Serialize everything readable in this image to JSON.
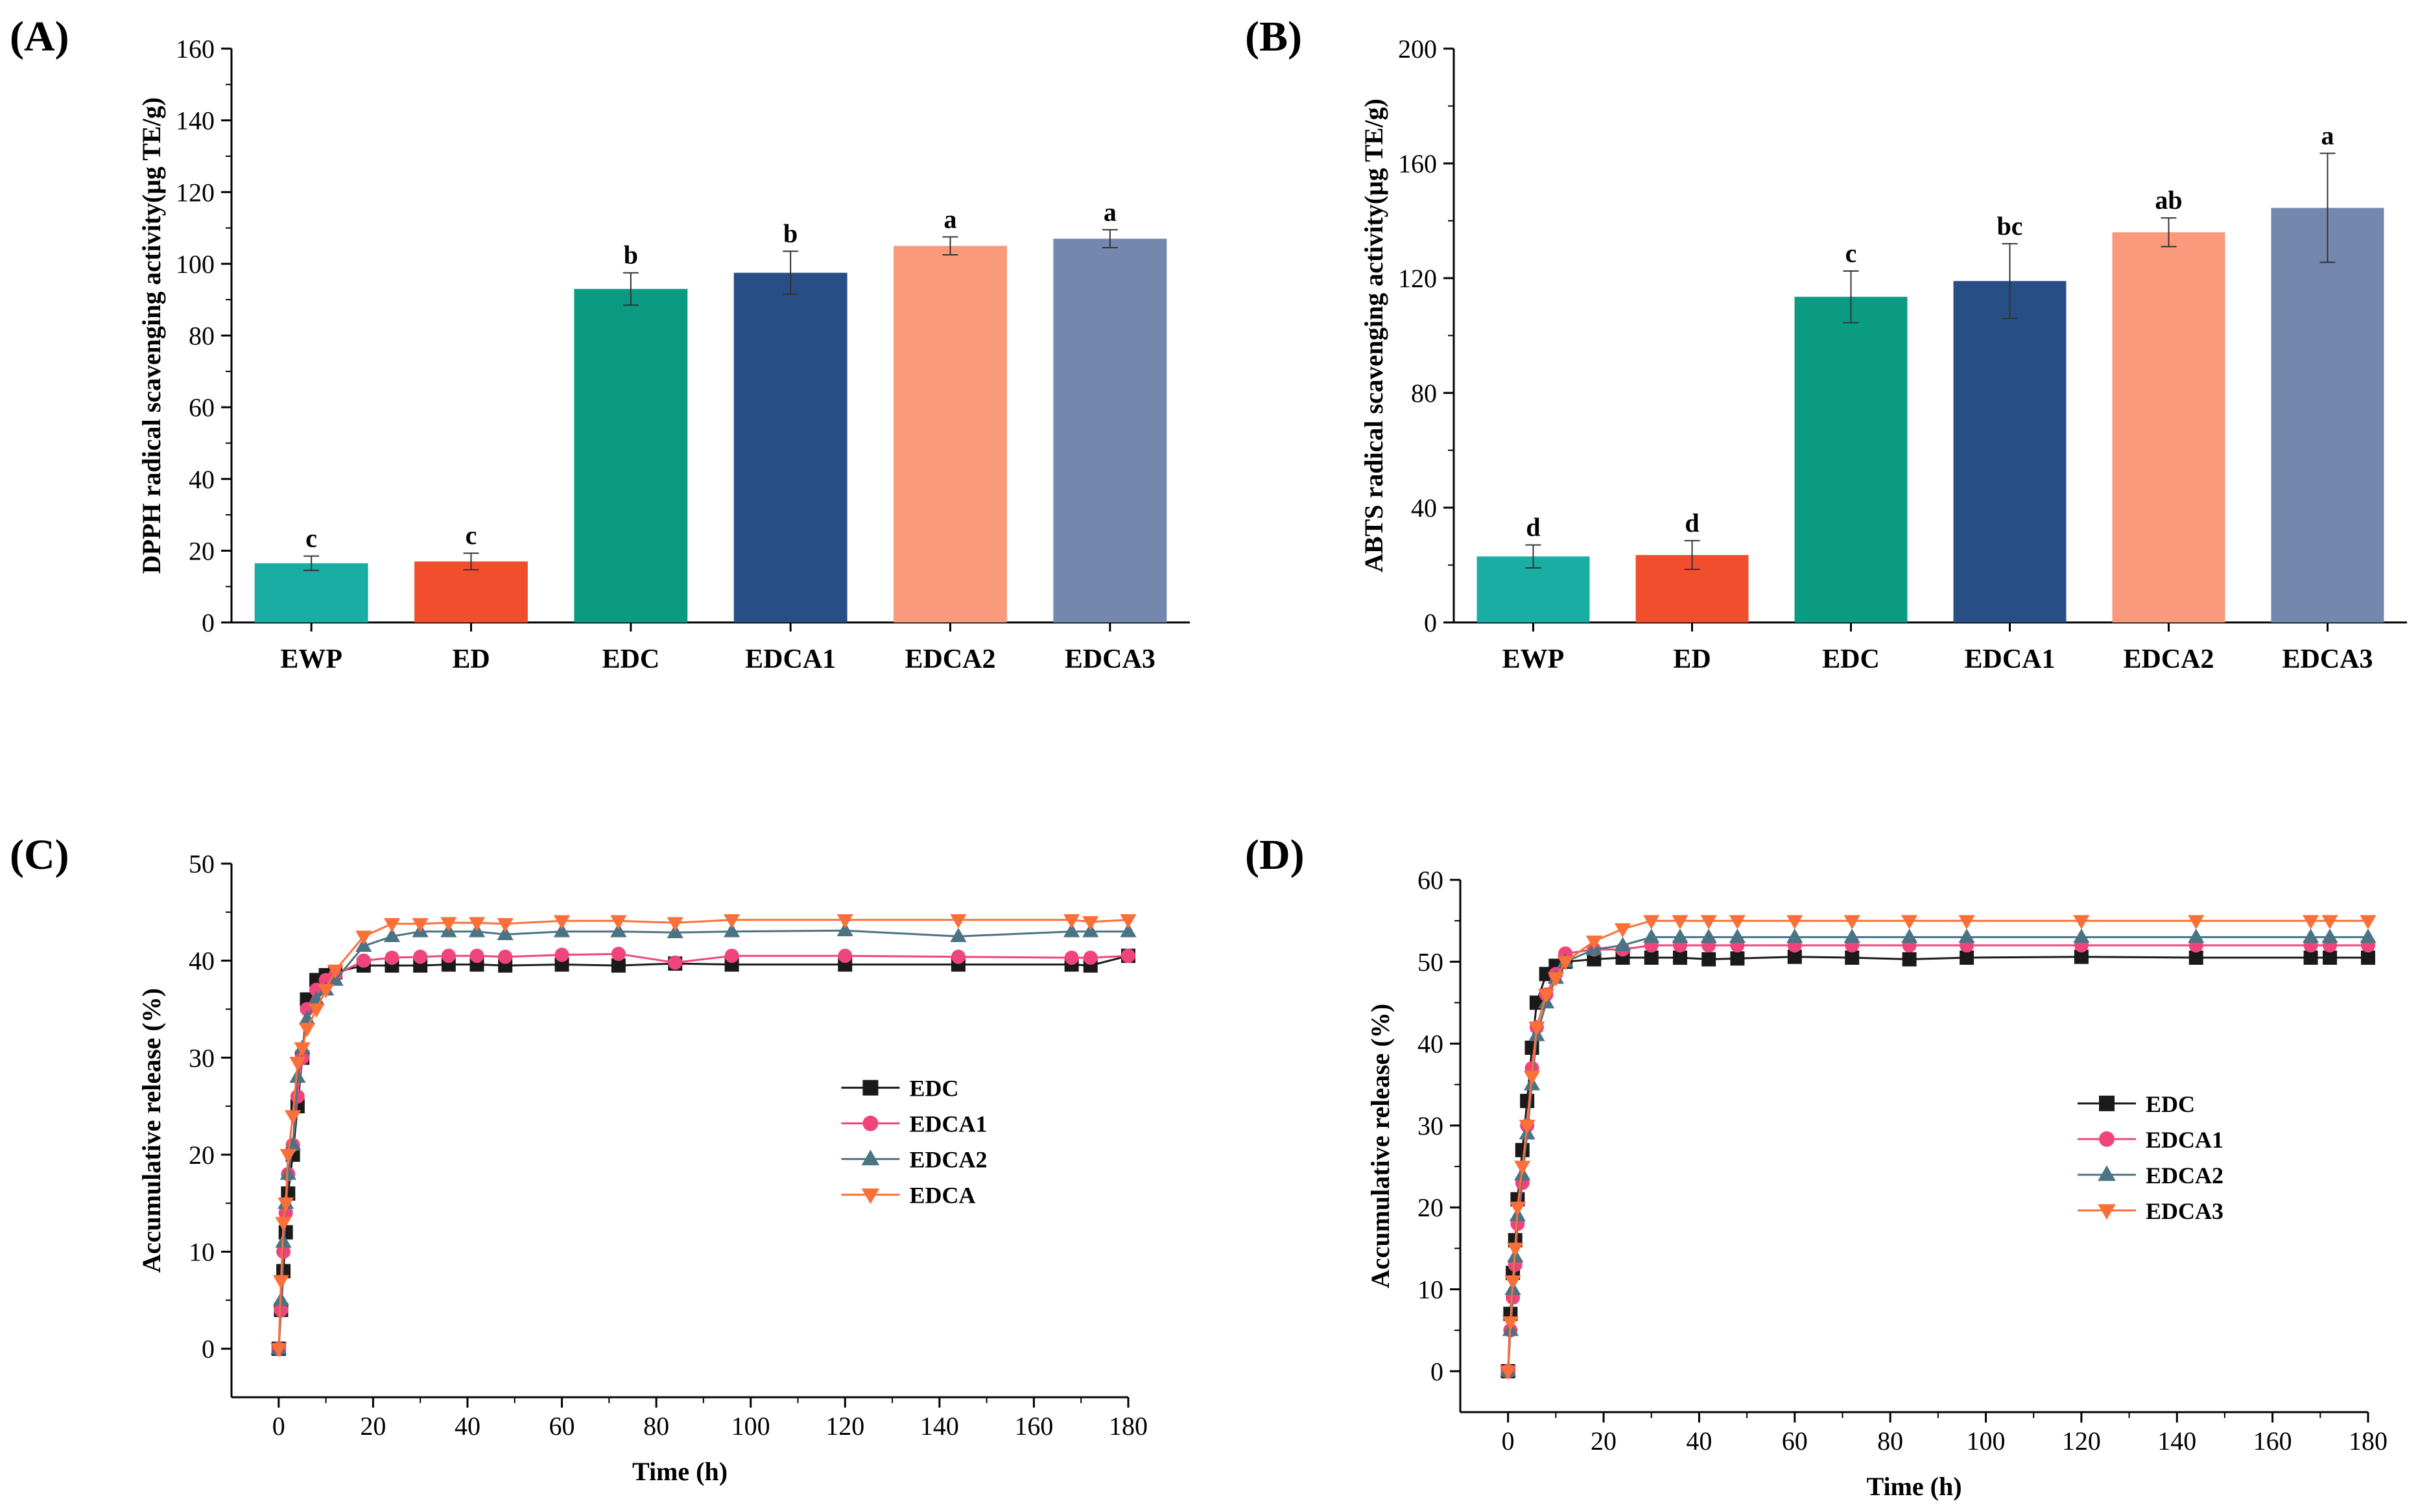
{
  "chart_data": [
    {
      "panel": "(A)",
      "type": "bar",
      "title": "",
      "xlabel": "",
      "ylabel": "DPPH radical scavenging activity(μg TE/g)",
      "categories": [
        "EWP",
        "ED",
        "EDC",
        "EDCA1",
        "EDCA2",
        "EDCA3"
      ],
      "values": [
        16.5,
        17,
        93,
        97.5,
        105,
        107
      ],
      "errors": [
        2,
        2.3,
        4.5,
        6,
        2.5,
        2.5
      ],
      "significance": [
        "c",
        "c",
        "b",
        "b",
        "a",
        "a"
      ],
      "colors": [
        "#1aada3",
        "#f24e2e",
        "#0b9b82",
        "#284f85",
        "#f99a7c",
        "#7488ae"
      ],
      "ylim": [
        0,
        160
      ],
      "yticks": [
        0,
        20,
        40,
        60,
        80,
        100,
        120,
        140,
        160
      ]
    },
    {
      "panel": "(B)",
      "type": "bar",
      "title": "",
      "xlabel": "",
      "ylabel": "ABTS radical scavenging activity(μg TE/g)",
      "categories": [
        "EWP",
        "ED",
        "EDC",
        "EDCA1",
        "EDCA2",
        "EDCA3"
      ],
      "values": [
        23,
        23.5,
        113.5,
        119,
        136,
        144.5
      ],
      "errors": [
        4,
        5,
        9,
        13,
        5,
        19
      ],
      "significance": [
        "d",
        "d",
        "c",
        "bc",
        "ab",
        "a"
      ],
      "colors": [
        "#1aada3",
        "#f24e2e",
        "#0b9b82",
        "#284f85",
        "#f99a7c",
        "#7488ae"
      ],
      "ylim": [
        0,
        200
      ],
      "yticks": [
        0,
        40,
        80,
        120,
        160,
        200
      ]
    },
    {
      "panel": "(C)",
      "type": "line",
      "title": "",
      "xlabel": "Time (h)",
      "ylabel": "Accumulative release (%)",
      "x": [
        0,
        0.5,
        1,
        1.5,
        2,
        3,
        4,
        5,
        6,
        8,
        10,
        12,
        18,
        24,
        30,
        36,
        42,
        48,
        60,
        72,
        84,
        96,
        120,
        144,
        168,
        172,
        180
      ],
      "xlim": [
        -10,
        180
      ],
      "ylim": [
        -5,
        50
      ],
      "xticks": [
        0,
        20,
        40,
        60,
        80,
        100,
        120,
        140,
        160,
        180
      ],
      "yticks": [
        0,
        10,
        20,
        30,
        40,
        50
      ],
      "legend_position": "center-right",
      "series": [
        {
          "name": "EDC",
          "color": "#1a1a1a",
          "marker": "square",
          "values": [
            0,
            4,
            8,
            12,
            16,
            20,
            25,
            30,
            36,
            38,
            38.5,
            38.8,
            39.5,
            39.5,
            39.5,
            39.6,
            39.6,
            39.5,
            39.6,
            39.5,
            39.7,
            39.6,
            39.6,
            39.6,
            39.6,
            39.5,
            40.5
          ]
        },
        {
          "name": "EDCA1",
          "color": "#f0457a",
          "marker": "circle",
          "values": [
            0,
            4,
            10,
            14,
            18,
            21,
            26,
            30,
            35,
            37,
            38,
            38.5,
            40,
            40.3,
            40.4,
            40.5,
            40.5,
            40.4,
            40.6,
            40.7,
            39.8,
            40.5,
            40.5,
            40.4,
            40.3,
            40.3,
            40.5
          ]
        },
        {
          "name": "EDCA2",
          "color": "#4a7384",
          "marker": "triangle-up",
          "values": [
            0,
            5,
            11,
            15,
            18,
            21,
            28,
            31,
            34,
            36,
            37,
            38,
            41.5,
            42.5,
            43,
            43,
            43,
            42.7,
            43,
            43,
            42.9,
            43,
            43.1,
            42.5,
            43,
            43,
            43
          ]
        },
        {
          "name": "EDCA",
          "color": "#fb7038",
          "marker": "triangle-down",
          "values": [
            0,
            7,
            13,
            15,
            20,
            24,
            29.5,
            31,
            33,
            35,
            37,
            39,
            42.5,
            43.8,
            43.8,
            43.9,
            43.9,
            43.8,
            44.1,
            44.1,
            43.9,
            44.2,
            44.2,
            44.2,
            44.2,
            44,
            44.2
          ]
        }
      ]
    },
    {
      "panel": "(D)",
      "type": "line",
      "title": "",
      "xlabel": "Time (h)",
      "ylabel": "Accumulative release (%)",
      "x": [
        0,
        0.5,
        1,
        1.5,
        2,
        3,
        4,
        5,
        6,
        8,
        10,
        12,
        18,
        24,
        30,
        36,
        42,
        48,
        60,
        72,
        84,
        96,
        120,
        144,
        168,
        172,
        180
      ],
      "xlim": [
        -10,
        180
      ],
      "ylim": [
        -5,
        60
      ],
      "xticks": [
        0,
        20,
        40,
        60,
        80,
        100,
        120,
        140,
        160,
        180
      ],
      "yticks": [
        0,
        10,
        20,
        30,
        40,
        50,
        60
      ],
      "legend_position": "center-right",
      "series": [
        {
          "name": "EDC",
          "color": "#1a1a1a",
          "marker": "square",
          "values": [
            0,
            7,
            12,
            16,
            21,
            27,
            33,
            39.5,
            45,
            48.5,
            49.5,
            50,
            50.3,
            50.5,
            50.5,
            50.5,
            50.3,
            50.4,
            50.6,
            50.5,
            50.3,
            50.5,
            50.6,
            50.5,
            50.5,
            50.5,
            50.5
          ]
        },
        {
          "name": "EDCA1",
          "color": "#f0457a",
          "marker": "circle",
          "values": [
            0,
            5,
            9,
            13,
            18,
            23,
            30,
            37,
            42,
            46,
            48.5,
            51,
            51.5,
            51.5,
            52,
            52,
            52,
            52,
            52,
            52,
            52,
            52,
            52,
            52,
            52,
            52,
            52
          ]
        },
        {
          "name": "EDCA2",
          "color": "#4a7384",
          "marker": "triangle-up",
          "values": [
            0,
            5,
            10,
            14,
            19,
            24,
            29,
            35,
            41,
            45,
            48,
            50,
            51.5,
            52,
            53,
            53,
            53,
            53,
            53,
            53,
            53,
            53,
            53,
            53,
            53,
            53,
            53
          ]
        },
        {
          "name": "EDCA3",
          "color": "#fb7038",
          "marker": "triangle-down",
          "values": [
            0,
            6,
            11,
            15,
            20,
            25,
            30,
            36,
            42,
            46,
            48,
            50,
            52.5,
            54,
            55,
            55,
            55,
            55,
            55,
            55,
            55,
            55,
            55,
            55,
            55,
            55,
            55
          ]
        }
      ]
    }
  ]
}
